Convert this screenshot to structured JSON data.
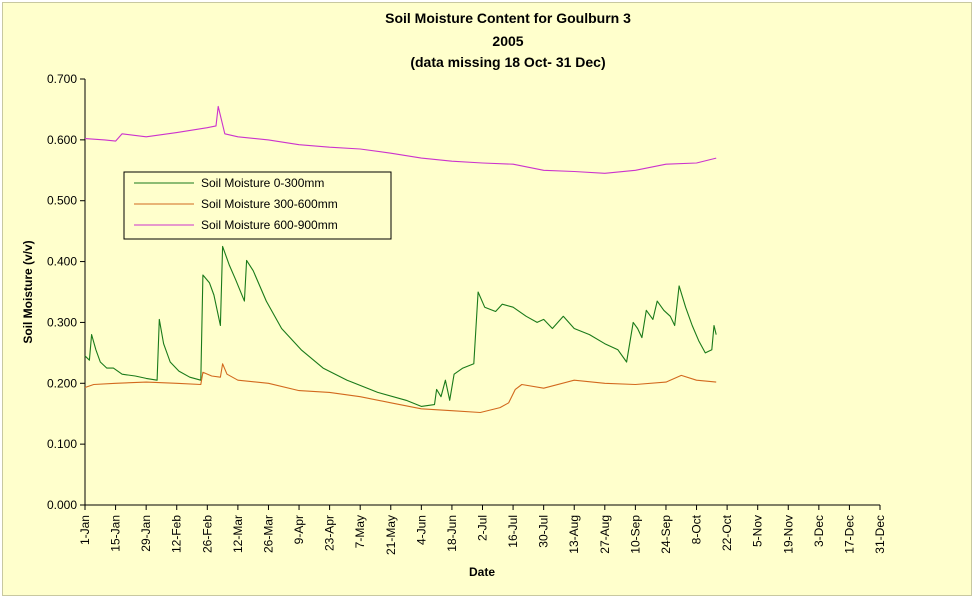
{
  "chart_data": {
    "type": "line",
    "title_lines": [
      "Soil Moisture Content for Goulburn 3",
      "2005",
      "(data missing 18 Oct- 31 Dec)"
    ],
    "xlabel": "Date",
    "ylabel": "Soil Moisture (v/v)",
    "ylim": [
      0,
      0.7
    ],
    "yticks": [
      "0.000",
      "0.100",
      "0.200",
      "0.300",
      "0.400",
      "0.500",
      "0.600",
      "0.700"
    ],
    "xlim": [
      "2005-01-01",
      "2005-12-31"
    ],
    "xticks": [
      {
        "date": "2005-01-01",
        "label": "1-Jan"
      },
      {
        "date": "2005-01-15",
        "label": "15-Jan"
      },
      {
        "date": "2005-01-29",
        "label": "29-Jan"
      },
      {
        "date": "2005-02-12",
        "label": "12-Feb"
      },
      {
        "date": "2005-02-26",
        "label": "26-Feb"
      },
      {
        "date": "2005-03-12",
        "label": "12-Mar"
      },
      {
        "date": "2005-03-26",
        "label": "26-Mar"
      },
      {
        "date": "2005-04-09",
        "label": "9-Apr"
      },
      {
        "date": "2005-04-23",
        "label": "23-Apr"
      },
      {
        "date": "2005-05-07",
        "label": "7-May"
      },
      {
        "date": "2005-05-21",
        "label": "21-May"
      },
      {
        "date": "2005-06-04",
        "label": "4-Jun"
      },
      {
        "date": "2005-06-18",
        "label": "18-Jun"
      },
      {
        "date": "2005-07-02",
        "label": "2-Jul"
      },
      {
        "date": "2005-07-16",
        "label": "16-Jul"
      },
      {
        "date": "2005-07-30",
        "label": "30-Jul"
      },
      {
        "date": "2005-08-13",
        "label": "13-Aug"
      },
      {
        "date": "2005-08-27",
        "label": "27-Aug"
      },
      {
        "date": "2005-09-10",
        "label": "10-Sep"
      },
      {
        "date": "2005-09-24",
        "label": "24-Sep"
      },
      {
        "date": "2005-10-08",
        "label": "8-Oct"
      },
      {
        "date": "2005-10-22",
        "label": "22-Oct"
      },
      {
        "date": "2005-11-05",
        "label": "5-Nov"
      },
      {
        "date": "2005-11-19",
        "label": "19-Nov"
      },
      {
        "date": "2005-12-03",
        "label": "3-Dec"
      },
      {
        "date": "2005-12-17",
        "label": "17-Dec"
      },
      {
        "date": "2005-12-31",
        "label": "31-Dec"
      }
    ],
    "grid": false,
    "legend_position": "upper-left",
    "series": [
      {
        "name": "Soil Moisture 0-300mm",
        "color": "#1a7a1a",
        "points": [
          [
            "2005-01-01",
            0.245
          ],
          [
            "2005-01-03",
            0.238
          ],
          [
            "2005-01-04",
            0.28
          ],
          [
            "2005-01-06",
            0.255
          ],
          [
            "2005-01-08",
            0.235
          ],
          [
            "2005-01-11",
            0.225
          ],
          [
            "2005-01-14",
            0.225
          ],
          [
            "2005-01-18",
            0.215
          ],
          [
            "2005-01-24",
            0.212
          ],
          [
            "2005-01-29",
            0.208
          ],
          [
            "2005-02-03",
            0.205
          ],
          [
            "2005-02-04",
            0.305
          ],
          [
            "2005-02-06",
            0.265
          ],
          [
            "2005-02-09",
            0.235
          ],
          [
            "2005-02-13",
            0.22
          ],
          [
            "2005-02-18",
            0.21
          ],
          [
            "2005-02-23",
            0.205
          ],
          [
            "2005-02-24",
            0.378
          ],
          [
            "2005-02-27",
            0.365
          ],
          [
            "2005-03-01",
            0.345
          ],
          [
            "2005-03-04",
            0.295
          ],
          [
            "2005-03-05",
            0.425
          ],
          [
            "2005-03-08",
            0.395
          ],
          [
            "2005-03-11",
            0.37
          ],
          [
            "2005-03-15",
            0.335
          ],
          [
            "2005-03-16",
            0.402
          ],
          [
            "2005-03-19",
            0.385
          ],
          [
            "2005-03-25",
            0.335
          ],
          [
            "2005-04-01",
            0.29
          ],
          [
            "2005-04-10",
            0.255
          ],
          [
            "2005-04-20",
            0.225
          ],
          [
            "2005-05-01",
            0.205
          ],
          [
            "2005-05-15",
            0.185
          ],
          [
            "2005-05-28",
            0.172
          ],
          [
            "2005-06-04",
            0.162
          ],
          [
            "2005-06-10",
            0.165
          ],
          [
            "2005-06-11",
            0.19
          ],
          [
            "2005-06-13",
            0.178
          ],
          [
            "2005-06-15",
            0.205
          ],
          [
            "2005-06-17",
            0.172
          ],
          [
            "2005-06-19",
            0.215
          ],
          [
            "2005-06-23",
            0.225
          ],
          [
            "2005-06-28",
            0.232
          ],
          [
            "2005-06-30",
            0.35
          ],
          [
            "2005-07-03",
            0.325
          ],
          [
            "2005-07-08",
            0.318
          ],
          [
            "2005-07-11",
            0.33
          ],
          [
            "2005-07-16",
            0.325
          ],
          [
            "2005-07-22",
            0.31
          ],
          [
            "2005-07-27",
            0.3
          ],
          [
            "2005-07-30",
            0.305
          ],
          [
            "2005-08-03",
            0.29
          ],
          [
            "2005-08-08",
            0.31
          ],
          [
            "2005-08-13",
            0.29
          ],
          [
            "2005-08-20",
            0.28
          ],
          [
            "2005-08-27",
            0.265
          ],
          [
            "2005-09-02",
            0.255
          ],
          [
            "2005-09-06",
            0.235
          ],
          [
            "2005-09-09",
            0.3
          ],
          [
            "2005-09-11",
            0.29
          ],
          [
            "2005-09-13",
            0.275
          ],
          [
            "2005-09-15",
            0.32
          ],
          [
            "2005-09-18",
            0.305
          ],
          [
            "2005-09-20",
            0.335
          ],
          [
            "2005-09-23",
            0.32
          ],
          [
            "2005-09-26",
            0.31
          ],
          [
            "2005-09-28",
            0.295
          ],
          [
            "2005-09-30",
            0.36
          ],
          [
            "2005-10-03",
            0.325
          ],
          [
            "2005-10-06",
            0.295
          ],
          [
            "2005-10-09",
            0.27
          ],
          [
            "2005-10-12",
            0.25
          ],
          [
            "2005-10-15",
            0.255
          ],
          [
            "2005-10-16",
            0.295
          ],
          [
            "2005-10-17",
            0.28
          ]
        ]
      },
      {
        "name": "Soil Moisture 300-600mm",
        "color": "#d2691e",
        "points": [
          [
            "2005-01-01",
            0.193
          ],
          [
            "2005-01-05",
            0.198
          ],
          [
            "2005-01-15",
            0.2
          ],
          [
            "2005-01-29",
            0.202
          ],
          [
            "2005-02-12",
            0.2
          ],
          [
            "2005-02-23",
            0.198
          ],
          [
            "2005-02-24",
            0.218
          ],
          [
            "2005-02-28",
            0.212
          ],
          [
            "2005-03-04",
            0.21
          ],
          [
            "2005-03-05",
            0.232
          ],
          [
            "2005-03-07",
            0.215
          ],
          [
            "2005-03-12",
            0.205
          ],
          [
            "2005-03-26",
            0.2
          ],
          [
            "2005-04-09",
            0.188
          ],
          [
            "2005-04-23",
            0.185
          ],
          [
            "2005-05-07",
            0.178
          ],
          [
            "2005-05-21",
            0.168
          ],
          [
            "2005-06-04",
            0.158
          ],
          [
            "2005-06-18",
            0.155
          ],
          [
            "2005-07-01",
            0.152
          ],
          [
            "2005-07-10",
            0.16
          ],
          [
            "2005-07-14",
            0.168
          ],
          [
            "2005-07-17",
            0.19
          ],
          [
            "2005-07-20",
            0.198
          ],
          [
            "2005-07-30",
            0.192
          ],
          [
            "2005-08-13",
            0.205
          ],
          [
            "2005-08-27",
            0.2
          ],
          [
            "2005-09-10",
            0.198
          ],
          [
            "2005-09-24",
            0.202
          ],
          [
            "2005-10-01",
            0.213
          ],
          [
            "2005-10-08",
            0.205
          ],
          [
            "2005-10-17",
            0.202
          ]
        ]
      },
      {
        "name": "Soil Moisture 600-900mm",
        "color": "#cc33cc",
        "points": [
          [
            "2005-01-01",
            0.602
          ],
          [
            "2005-01-10",
            0.6
          ],
          [
            "2005-01-15",
            0.598
          ],
          [
            "2005-01-18",
            0.61
          ],
          [
            "2005-01-29",
            0.605
          ],
          [
            "2005-02-12",
            0.612
          ],
          [
            "2005-02-26",
            0.62
          ],
          [
            "2005-03-02",
            0.623
          ],
          [
            "2005-03-03",
            0.655
          ],
          [
            "2005-03-05",
            0.625
          ],
          [
            "2005-03-06",
            0.61
          ],
          [
            "2005-03-12",
            0.605
          ],
          [
            "2005-03-26",
            0.6
          ],
          [
            "2005-04-09",
            0.592
          ],
          [
            "2005-04-23",
            0.588
          ],
          [
            "2005-05-07",
            0.585
          ],
          [
            "2005-05-21",
            0.578
          ],
          [
            "2005-06-04",
            0.57
          ],
          [
            "2005-06-18",
            0.565
          ],
          [
            "2005-07-02",
            0.562
          ],
          [
            "2005-07-16",
            0.56
          ],
          [
            "2005-07-30",
            0.55
          ],
          [
            "2005-08-13",
            0.548
          ],
          [
            "2005-08-27",
            0.545
          ],
          [
            "2005-09-10",
            0.55
          ],
          [
            "2005-09-24",
            0.56
          ],
          [
            "2005-10-08",
            0.562
          ],
          [
            "2005-10-17",
            0.57
          ]
        ]
      }
    ]
  }
}
